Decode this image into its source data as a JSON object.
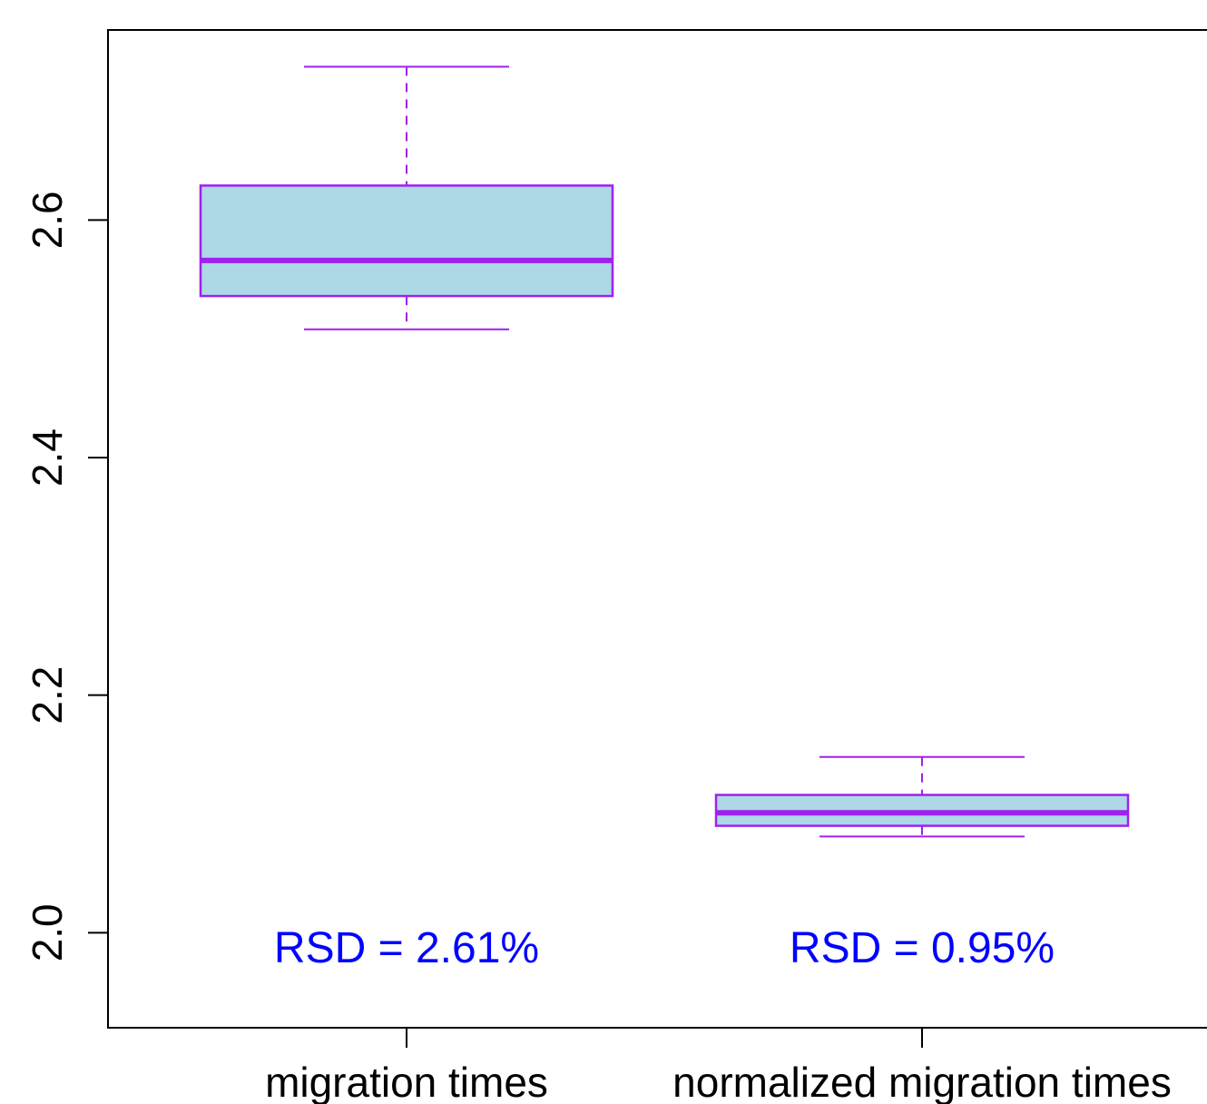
{
  "chart_data": {
    "type": "box",
    "categories": [
      "migration times",
      "normalized migration times"
    ],
    "boxes": [
      {
        "category": "migration times",
        "whisker_low": 2.508,
        "q1": 2.536,
        "median": 2.566,
        "q3": 2.629,
        "whisker_high": 2.729
      },
      {
        "category": "normalized migration times",
        "whisker_low": 2.081,
        "q1": 2.09,
        "median": 2.101,
        "q3": 2.116,
        "whisker_high": 2.148
      }
    ],
    "annotations": [
      "RSD = 2.61%",
      "RSD = 0.95%"
    ],
    "y_ticks": [
      "2.0",
      "2.2",
      "2.4",
      "2.6"
    ],
    "ylim": [
      1.92,
      2.76
    ],
    "title": "",
    "xlabel": "",
    "ylabel": "",
    "colors": {
      "box_fill": "#add8e6",
      "box_border": "#a020f0",
      "annotation": "#0000ff",
      "axis": "#000000"
    }
  }
}
